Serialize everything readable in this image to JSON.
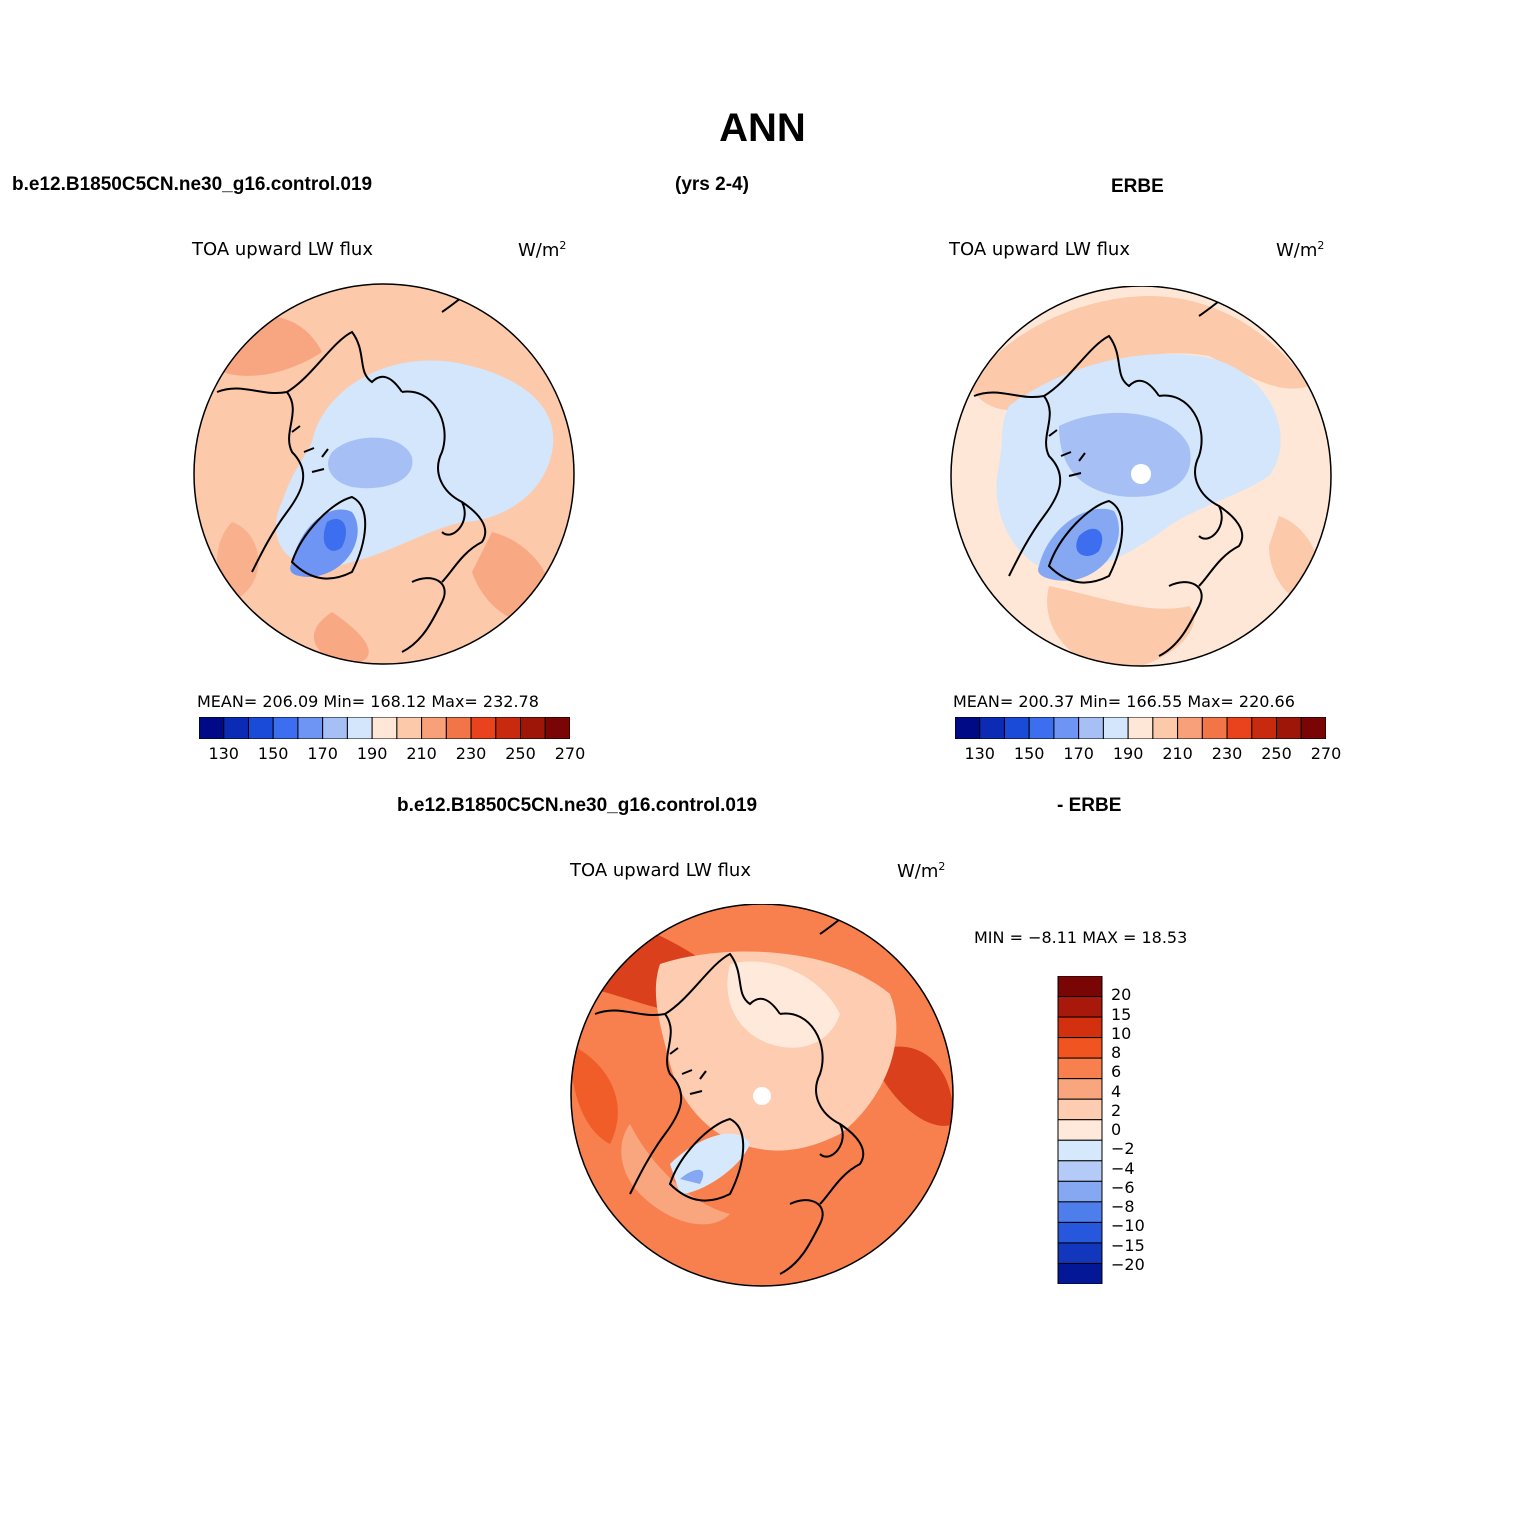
{
  "figure": {
    "title": "ANN",
    "top_left": "b.e12.B1850C5CN.ne30_g16.control.019",
    "top_mid": "(yrs 2-4)",
    "top_right": "ERBE",
    "diff_left": "b.e12.B1850C5CN.ne30_g16.control.019",
    "diff_right": "- ERBE"
  },
  "panels": [
    {
      "id": "model",
      "variable": "TOA upward LW flux",
      "units_base": "W/m",
      "units_exp": "2",
      "stats": "MEAN= 206.09   Min= 168.12   Max= 232.78",
      "colorbar_labels": [
        "130",
        "150",
        "170",
        "190",
        "210",
        "230",
        "250",
        "270"
      ]
    },
    {
      "id": "erbe",
      "variable": "TOA upward LW flux",
      "units_base": "W/m",
      "units_exp": "2",
      "stats": "MEAN= 200.37   Min= 166.55   Max= 220.66",
      "colorbar_labels": [
        "130",
        "150",
        "170",
        "190",
        "210",
        "230",
        "250",
        "270"
      ]
    },
    {
      "id": "difference",
      "variable": "TOA upward LW flux",
      "units_base": "W/m",
      "units_exp": "2",
      "stats": "MIN =  −8.11  MAX =  18.53",
      "colorbar_labels": [
        "20",
        "15",
        "10",
        "8",
        "6",
        "4",
        "2",
        "0",
        "−2",
        "−4",
        "−6",
        "−8",
        "−10",
        "−15",
        "−20"
      ]
    }
  ],
  "colors": {
    "abs_scale": [
      "#000a86",
      "#0b2bb5",
      "#1a4ad8",
      "#3d6ef0",
      "#6f95f4",
      "#a6c0f6",
      "#d4e6fb",
      "#fee7d7",
      "#fcc9ab",
      "#f7a07a",
      "#f27548",
      "#e8431c",
      "#c72a0e",
      "#9e1608",
      "#7a0505"
    ],
    "diff_scale": [
      "#7a0505",
      "#a8190b",
      "#d2300f",
      "#ef5421",
      "#f7804e",
      "#f9a57e",
      "#fdccb1",
      "#fee9da",
      "#d6e8fb",
      "#b3cbf6",
      "#86a8f2",
      "#4e7eec",
      "#2757dd",
      "#1236bc",
      "#031797"
    ],
    "coastline": "#000000"
  },
  "chart_data": [
    {
      "type": "heatmap",
      "projection": "north polar stereographic",
      "title": "TOA upward LW flux",
      "units": "W/m2",
      "stats": {
        "mean": 206.09,
        "min": 168.12,
        "max": 232.78
      },
      "contour_levels": [
        130,
        140,
        150,
        160,
        170,
        180,
        190,
        200,
        210,
        220,
        230,
        240,
        250,
        260,
        270
      ]
    },
    {
      "type": "heatmap",
      "projection": "north polar stereographic",
      "title": "TOA upward LW flux",
      "units": "W/m2",
      "stats": {
        "mean": 200.37,
        "min": 166.55,
        "max": 220.66
      },
      "contour_levels": [
        130,
        140,
        150,
        160,
        170,
        180,
        190,
        200,
        210,
        220,
        230,
        240,
        250,
        260,
        270
      ]
    },
    {
      "type": "heatmap",
      "projection": "north polar stereographic",
      "title": "TOA upward LW flux",
      "units": "W/m2",
      "stats": {
        "min": -8.11,
        "max": 18.53
      },
      "contour_levels": [
        -20,
        -15,
        -10,
        -8,
        -6,
        -4,
        -2,
        0,
        2,
        4,
        6,
        8,
        10,
        15,
        20
      ]
    }
  ]
}
